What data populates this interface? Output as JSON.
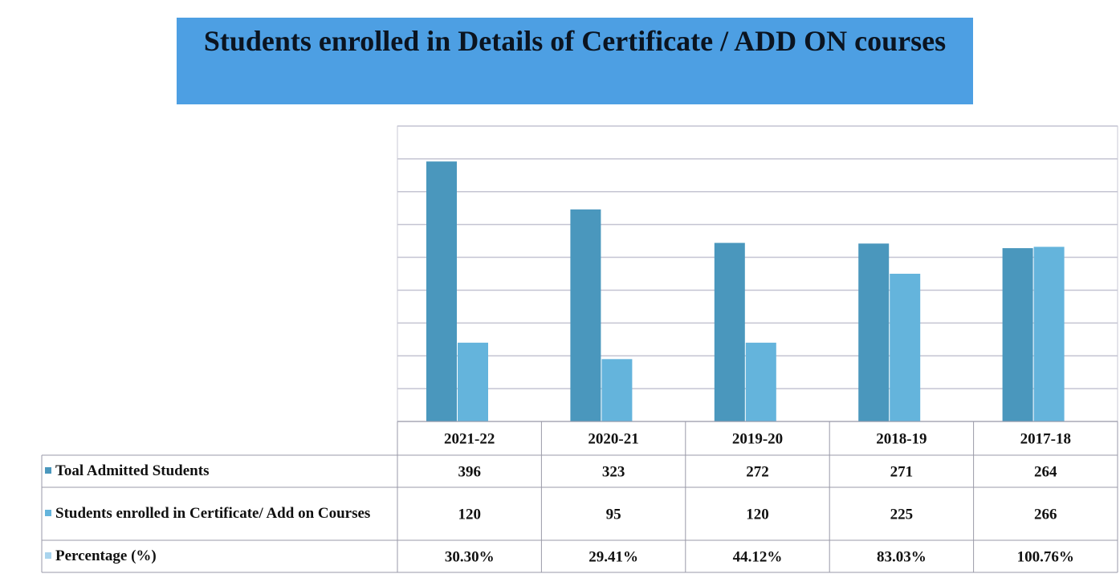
{
  "chart_data": {
    "type": "bar",
    "title": "Students enrolled in Details of Certificate / ADD ON courses",
    "categories": [
      "2021-22",
      "2020-21",
      "2019-20",
      "2018-19",
      "2017-18"
    ],
    "series": [
      {
        "name": "Toal Admitted Students",
        "color": "#4a97bd",
        "values": [
          396,
          323,
          272,
          271,
          264
        ]
      },
      {
        "name": "Students enrolled in Certificate/ Add on Courses",
        "color": "#64b4dc",
        "values": [
          120,
          95,
          120,
          225,
          266
        ]
      },
      {
        "name": "Percentage (%)",
        "color": "#a9d4ee",
        "values": [
          30.3,
          29.41,
          44.12,
          83.03,
          100.76
        ],
        "value_labels": [
          "30.30%",
          "29.41%",
          "44.12%",
          "83.03%",
          "100.76%"
        ]
      }
    ],
    "ylim": [
      0,
      450
    ],
    "yticks": [
      0,
      50,
      100,
      150,
      200,
      250,
      300,
      350,
      400,
      450
    ],
    "grid": true
  }
}
